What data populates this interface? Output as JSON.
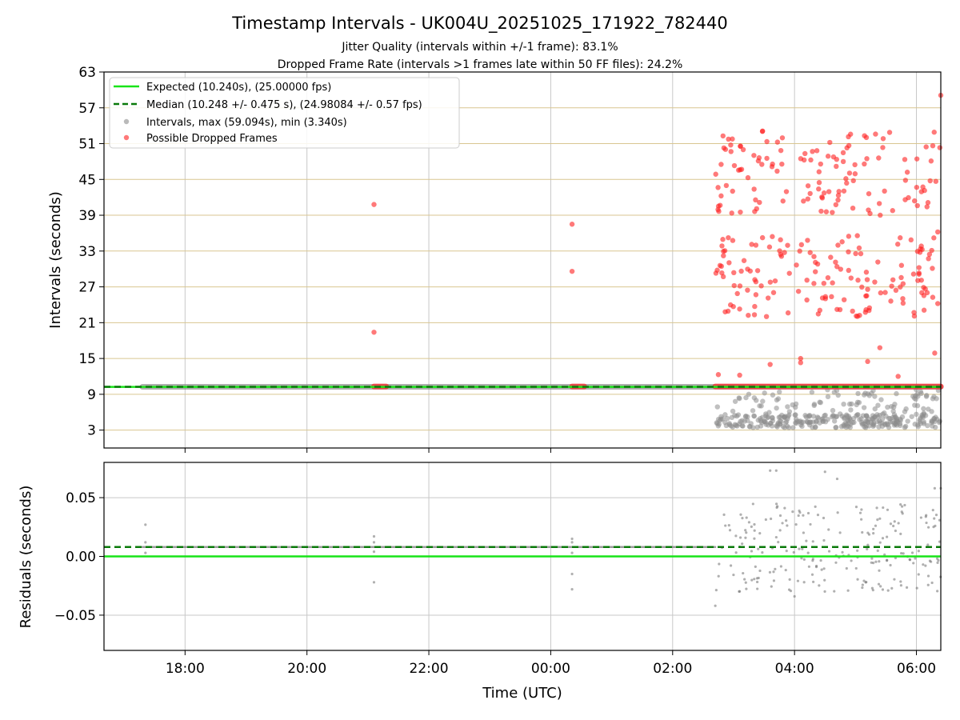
{
  "figure": {
    "title": "Timestamp Intervals - UK004U_20251025_171922_782440",
    "subtitle_1": "Jitter Quality (intervals within +/-1 frame): 83.1%",
    "subtitle_2": "Dropped Frame Rate (intervals >1 frames late within 50 FF files): 24.2%"
  },
  "chart_data": [
    {
      "type": "scatter",
      "name": "intervals",
      "ylabel": "Intervals (seconds)",
      "xlabel": "",
      "x_unit": "hours since 18:00 UTC (axis tick labels show clock time)",
      "xlim": [
        -1.33,
        12.4
      ],
      "ylim": [
        0,
        63
      ],
      "x_ticks": [
        0,
        2,
        4,
        6,
        8,
        10,
        12
      ],
      "x_tick_labels": [
        "18:00",
        "20:00",
        "22:00",
        "00:00",
        "02:00",
        "04:00",
        "06:00"
      ],
      "y_ticks": [
        3,
        9,
        15,
        21,
        27,
        33,
        39,
        45,
        51,
        57,
        63
      ],
      "y_tick_labels": [
        "3",
        "9",
        "15",
        "21",
        "27",
        "33",
        "39",
        "45",
        "51",
        "57",
        "63"
      ],
      "grid": {
        "y": true,
        "x": true,
        "y_color": "#d9c690",
        "x_color": "#c8c8c8"
      },
      "legend": {
        "placement": "top-left",
        "entries": [
          {
            "label": "Expected (10.240s), (25.00000 fps)",
            "style": "solid-line",
            "color": "#18e418"
          },
          {
            "label": "Median (10.248 +/- 0.475 s), (24.98084 +/- 0.57 fps)",
            "style": "dashed-line",
            "color": "#0a7a0a"
          },
          {
            "label": "Intervals, max (59.094s), min (3.340s)",
            "style": "marker",
            "color": "#8c8c8c"
          },
          {
            "label": "Possible Dropped Frames",
            "style": "marker",
            "color": "#ff2020"
          }
        ]
      },
      "expected_line": 10.24,
      "median_line": 10.248,
      "series": [
        {
          "name": "Intervals",
          "color": "#8c8c8c",
          "baseline_band": {
            "x_start": -0.7,
            "x_end": 12.4,
            "y": 10.25
          },
          "clusters": [
            {
              "x_range": [
                8.7,
                12.4
              ],
              "y_range": [
                3.4,
                5.6
              ],
              "count": 260
            },
            {
              "x_range": [
                8.7,
                12.4
              ],
              "y_range": [
                5.6,
                9.8
              ],
              "count": 90
            }
          ]
        },
        {
          "name": "Possible Dropped Frames",
          "color": "#ff2020",
          "dense_runs": [
            {
              "x_range": [
                3.1,
                3.3
              ],
              "y": 10.3
            },
            {
              "x_range": [
                6.35,
                6.55
              ],
              "y": 10.3
            },
            {
              "x_range": [
                8.7,
                12.4
              ],
              "y": 10.3
            }
          ],
          "points": [
            {
              "x": 3.1,
              "y": 40.8
            },
            {
              "x": 3.1,
              "y": 19.4
            },
            {
              "x": 6.35,
              "y": 37.5
            },
            {
              "x": 6.35,
              "y": 29.6
            },
            {
              "x": 12.4,
              "y": 59.1
            },
            {
              "x": 12.35,
              "y": 36.2
            },
            {
              "x": 12.35,
              "y": 24.2
            },
            {
              "x": 12.3,
              "y": 15.9
            },
            {
              "x": 10.1,
              "y": 14.3
            },
            {
              "x": 10.1,
              "y": 15.0
            },
            {
              "x": 11.4,
              "y": 16.8
            },
            {
              "x": 11.2,
              "y": 14.5
            },
            {
              "x": 8.75,
              "y": 12.3
            },
            {
              "x": 9.1,
              "y": 12.2
            },
            {
              "x": 9.6,
              "y": 14.0
            },
            {
              "x": 11.7,
              "y": 12.0
            }
          ],
          "clusters": [
            {
              "x_range": [
                8.7,
                12.4
              ],
              "y_range": [
                39,
                53.5
              ],
              "count": 130
            },
            {
              "x_range": [
                8.7,
                12.4
              ],
              "y_range": [
                22,
                36
              ],
              "count": 150
            }
          ]
        }
      ]
    },
    {
      "type": "scatter",
      "name": "residuals",
      "ylabel": "Residuals (seconds)",
      "xlabel": "Time (UTC)",
      "xlim": [
        -1.33,
        12.4
      ],
      "ylim": [
        -0.08,
        0.08
      ],
      "y_ticks": [
        -0.05,
        0,
        0.05
      ],
      "y_tick_labels": [
        "−0.05",
        "0.00",
        "0.05"
      ],
      "x_ticks": [
        0,
        2,
        4,
        6,
        8,
        10,
        12
      ],
      "x_tick_labels": [
        "18:00",
        "20:00",
        "22:00",
        "00:00",
        "02:00",
        "04:00",
        "06:00"
      ],
      "grid": {
        "y": true,
        "x": true,
        "color": "#c8c8c8"
      },
      "expected_line": 0.0,
      "median_line": 0.008,
      "series": [
        {
          "name": "Residuals",
          "color": "#707070",
          "baseline_band": {
            "x_start": -0.7,
            "x_end": 8.7,
            "y": 0.008
          },
          "points": [
            {
              "x": -0.65,
              "y": 0.027
            },
            {
              "x": -0.65,
              "y": 0.012
            },
            {
              "x": -0.65,
              "y": 0.003
            },
            {
              "x": 3.1,
              "y": 0.017
            },
            {
              "x": 3.1,
              "y": 0.012
            },
            {
              "x": 3.1,
              "y": 0.004
            },
            {
              "x": 3.1,
              "y": -0.022
            },
            {
              "x": 6.35,
              "y": 0.015
            },
            {
              "x": 6.35,
              "y": 0.012
            },
            {
              "x": 6.35,
              "y": 0.003
            },
            {
              "x": 6.35,
              "y": -0.015
            },
            {
              "x": 6.35,
              "y": -0.028
            },
            {
              "x": 8.7,
              "y": -0.042
            },
            {
              "x": 9.6,
              "y": 0.073
            },
            {
              "x": 9.7,
              "y": 0.073
            },
            {
              "x": 10.5,
              "y": 0.072
            },
            {
              "x": 10.7,
              "y": 0.066
            },
            {
              "x": 12.3,
              "y": 0.058
            },
            {
              "x": 12.4,
              "y": 0.058
            },
            {
              "x": 10.0,
              "y": -0.034
            }
          ],
          "clusters": [
            {
              "x_range": [
                8.7,
                12.4
              ],
              "y_range": [
                -0.03,
                0.045
              ],
              "count": 220
            }
          ]
        }
      ]
    }
  ]
}
